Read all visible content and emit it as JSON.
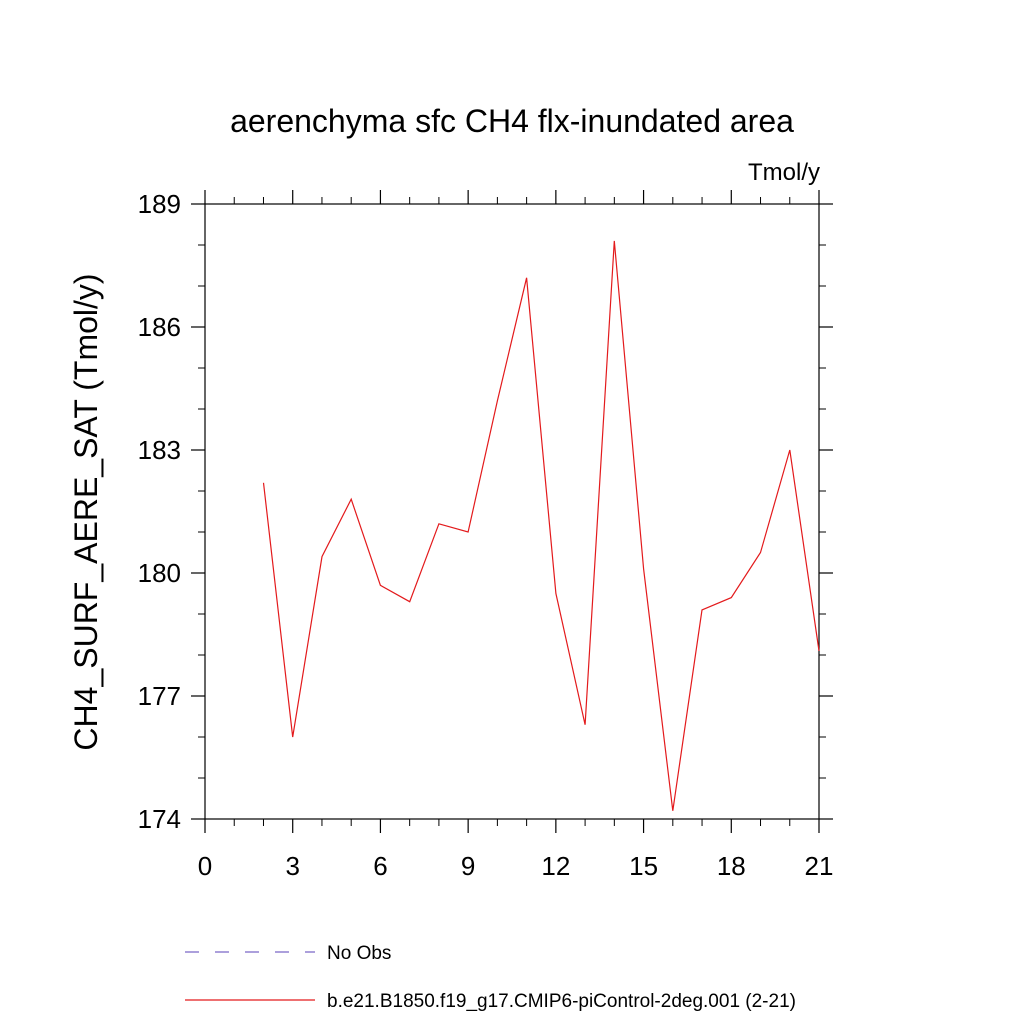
{
  "chart_data": {
    "type": "line",
    "title": "aerenchyma sfc CH4 flx-inundated area",
    "units_label": "Tmol/y",
    "ylabel": "CH4_SURF_AERE_SAT  (Tmol/y)",
    "xlabel": "",
    "xlim": [
      0,
      21
    ],
    "ylim": [
      174,
      189
    ],
    "x_ticks": [
      0,
      3,
      6,
      9,
      12,
      15,
      18,
      21
    ],
    "x_tick_labels": [
      "0",
      "3",
      "6",
      "9",
      "12",
      "15",
      "18",
      "21"
    ],
    "y_ticks": [
      174,
      177,
      180,
      183,
      186,
      189
    ],
    "y_tick_labels": [
      "174",
      "177",
      "180",
      "183",
      "186",
      "189"
    ],
    "grid": false,
    "legend_position": "bottom",
    "series": [
      {
        "name": "b.e21.B1850.f19_g17.CMIP6-piControl-2deg.001 (2-21)",
        "color": "#e31a1c",
        "style": "solid",
        "x": [
          2,
          3,
          4,
          5,
          6,
          7,
          8,
          9,
          10,
          11,
          12,
          13,
          14,
          15,
          16,
          17,
          18,
          19,
          20,
          21
        ],
        "y": [
          182.2,
          176.0,
          180.4,
          181.8,
          179.7,
          179.3,
          181.2,
          181.0,
          184.2,
          187.2,
          179.5,
          176.3,
          188.1,
          180.1,
          174.2,
          179.1,
          179.4,
          180.5,
          183.0,
          178.1
        ]
      }
    ],
    "legend": [
      {
        "label": "No Obs",
        "color": "#7b68c8",
        "style": "dashed"
      },
      {
        "label": "b.e21.B1850.f19_g17.CMIP6-piControl-2deg.001 (2-21)",
        "color": "#e31a1c",
        "style": "solid"
      }
    ]
  }
}
